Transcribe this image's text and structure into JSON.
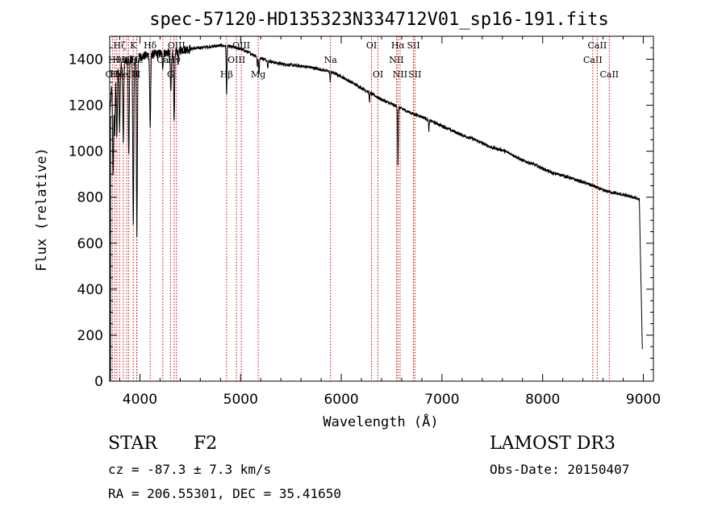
{
  "chart_data": {
    "type": "line",
    "title": "spec-57120-HD135323N334712V01_sp16-191.fits",
    "xlabel": "Wavelength (Å)",
    "ylabel": "Flux (relative)",
    "xlim": [
      3700,
      9100
    ],
    "ylim": [
      0,
      1500
    ],
    "xticks": [
      4000,
      5000,
      6000,
      7000,
      8000,
      9000
    ],
    "yticks": [
      0,
      200,
      400,
      600,
      800,
      1000,
      1200,
      1400
    ],
    "continuum": {
      "x": [
        3700,
        3720,
        3750,
        3800,
        3850,
        3900,
        4000,
        4100,
        4200,
        4300,
        4400,
        4500,
        4600,
        4700,
        4800,
        4900,
        5000,
        5100,
        5200,
        5300,
        5400,
        5500,
        5600,
        5700,
        5800,
        5900,
        6000,
        6100,
        6200,
        6300,
        6400,
        6500,
        6600,
        6700,
        6800,
        6900,
        7000,
        7100,
        7200,
        7300,
        7400,
        7500,
        7600,
        7700,
        7800,
        7900,
        8000,
        8100,
        8200,
        8300,
        8400,
        8500,
        8600,
        8700,
        8800,
        8900,
        8960
      ],
      "y": [
        1150,
        1280,
        1340,
        1370,
        1390,
        1400,
        1410,
        1420,
        1425,
        1430,
        1440,
        1445,
        1450,
        1455,
        1460,
        1455,
        1445,
        1425,
        1405,
        1390,
        1380,
        1375,
        1370,
        1365,
        1355,
        1345,
        1325,
        1300,
        1275,
        1250,
        1225,
        1205,
        1185,
        1165,
        1150,
        1130,
        1110,
        1090,
        1070,
        1055,
        1035,
        1015,
        1005,
        985,
        960,
        945,
        925,
        905,
        895,
        880,
        865,
        850,
        830,
        820,
        810,
        800,
        790
      ]
    },
    "absorption_features": [
      {
        "x": 3734,
        "depth": 0.32
      },
      {
        "x": 3750,
        "depth": 0.2
      },
      {
        "x": 3771,
        "depth": 0.22
      },
      {
        "x": 3798,
        "depth": 0.2
      },
      {
        "x": 3835,
        "depth": 0.25
      },
      {
        "x": 3889,
        "depth": 0.3
      },
      {
        "x": 3934,
        "depth": 0.52
      },
      {
        "x": 3970,
        "depth": 0.55
      },
      {
        "x": 4102,
        "depth": 0.22
      },
      {
        "x": 4227,
        "depth": 0.04
      },
      {
        "x": 4307,
        "depth": 0.12
      },
      {
        "x": 4340,
        "depth": 0.22
      },
      {
        "x": 4383,
        "depth": 0.03
      },
      {
        "x": 4861,
        "depth": 0.15
      },
      {
        "x": 5167,
        "depth": 0.03
      },
      {
        "x": 5183,
        "depth": 0.05
      },
      {
        "x": 5270,
        "depth": 0.02
      },
      {
        "x": 5890,
        "depth": 0.03
      },
      {
        "x": 6280,
        "depth": 0.03
      },
      {
        "x": 6563,
        "depth": 0.22
      },
      {
        "x": 6870,
        "depth": 0.04
      }
    ],
    "red_edge": {
      "x": 8990,
      "y": 140
    },
    "line_markers": [
      {
        "x": 3727,
        "label": "OII",
        "row": 2
      },
      {
        "x": 3750,
        "label": "Hθ",
        "row": 1
      },
      {
        "x": 3771,
        "label": "Hη",
        "row": 2
      },
      {
        "x": 3798,
        "label": "Hζ",
        "row": 0
      },
      {
        "x": 3835,
        "label": "Hη",
        "row": 1
      },
      {
        "x": 3869,
        "label": "NeIII",
        "row": 2
      },
      {
        "x": 3889,
        "label": "Hζ",
        "row": 1
      },
      {
        "x": 3934,
        "label": "K",
        "row": 0
      },
      {
        "x": 3968,
        "label": "H",
        "row": 2
      },
      {
        "x": 3970,
        "label": "Hε",
        "row": 1
      },
      {
        "x": 4102,
        "label": "Hδ",
        "row": 0
      },
      {
        "x": 4227,
        "label": "Ca",
        "row": 1
      },
      {
        "x": 4304,
        "label": "G",
        "row": 2
      },
      {
        "x": 4340,
        "label": "Hγ",
        "row": 1
      },
      {
        "x": 4363,
        "label": "OIII",
        "row": 0
      },
      {
        "x": 4861,
        "label": "Hβ",
        "row": 2
      },
      {
        "x": 4959,
        "label": "OIII",
        "row": 1
      },
      {
        "x": 5007,
        "label": "OIII",
        "row": 0
      },
      {
        "x": 5175,
        "label": "Mg",
        "row": 2
      },
      {
        "x": 5893,
        "label": "Na",
        "row": 1
      },
      {
        "x": 6300,
        "label": "OI",
        "row": 0
      },
      {
        "x": 6364,
        "label": "OI",
        "row": 2
      },
      {
        "x": 6548,
        "label": "NII",
        "row": 1
      },
      {
        "x": 6563,
        "label": "Hα",
        "row": 0
      },
      {
        "x": 6584,
        "label": "NII",
        "row": 2
      },
      {
        "x": 6717,
        "label": "SII",
        "row": 0
      },
      {
        "x": 6731,
        "label": "SII",
        "row": 2
      },
      {
        "x": 8498,
        "label": "CaII",
        "row": 1
      },
      {
        "x": 8542,
        "label": "CaII",
        "row": 0
      },
      {
        "x": 8662,
        "label": "CaII",
        "row": 2
      }
    ]
  },
  "info": {
    "object_type": "STAR",
    "subclass": "F2",
    "survey": "LAMOST DR3",
    "redshift": "cz = -87.3 ± 7.3 km/s",
    "obs_date": "Obs-Date: 20150407",
    "coords": "RA = 206.55301, DEC =  35.41650"
  },
  "colors": {
    "spectrum": "#000000",
    "marker": "#cc0000",
    "axis": "#000000"
  }
}
